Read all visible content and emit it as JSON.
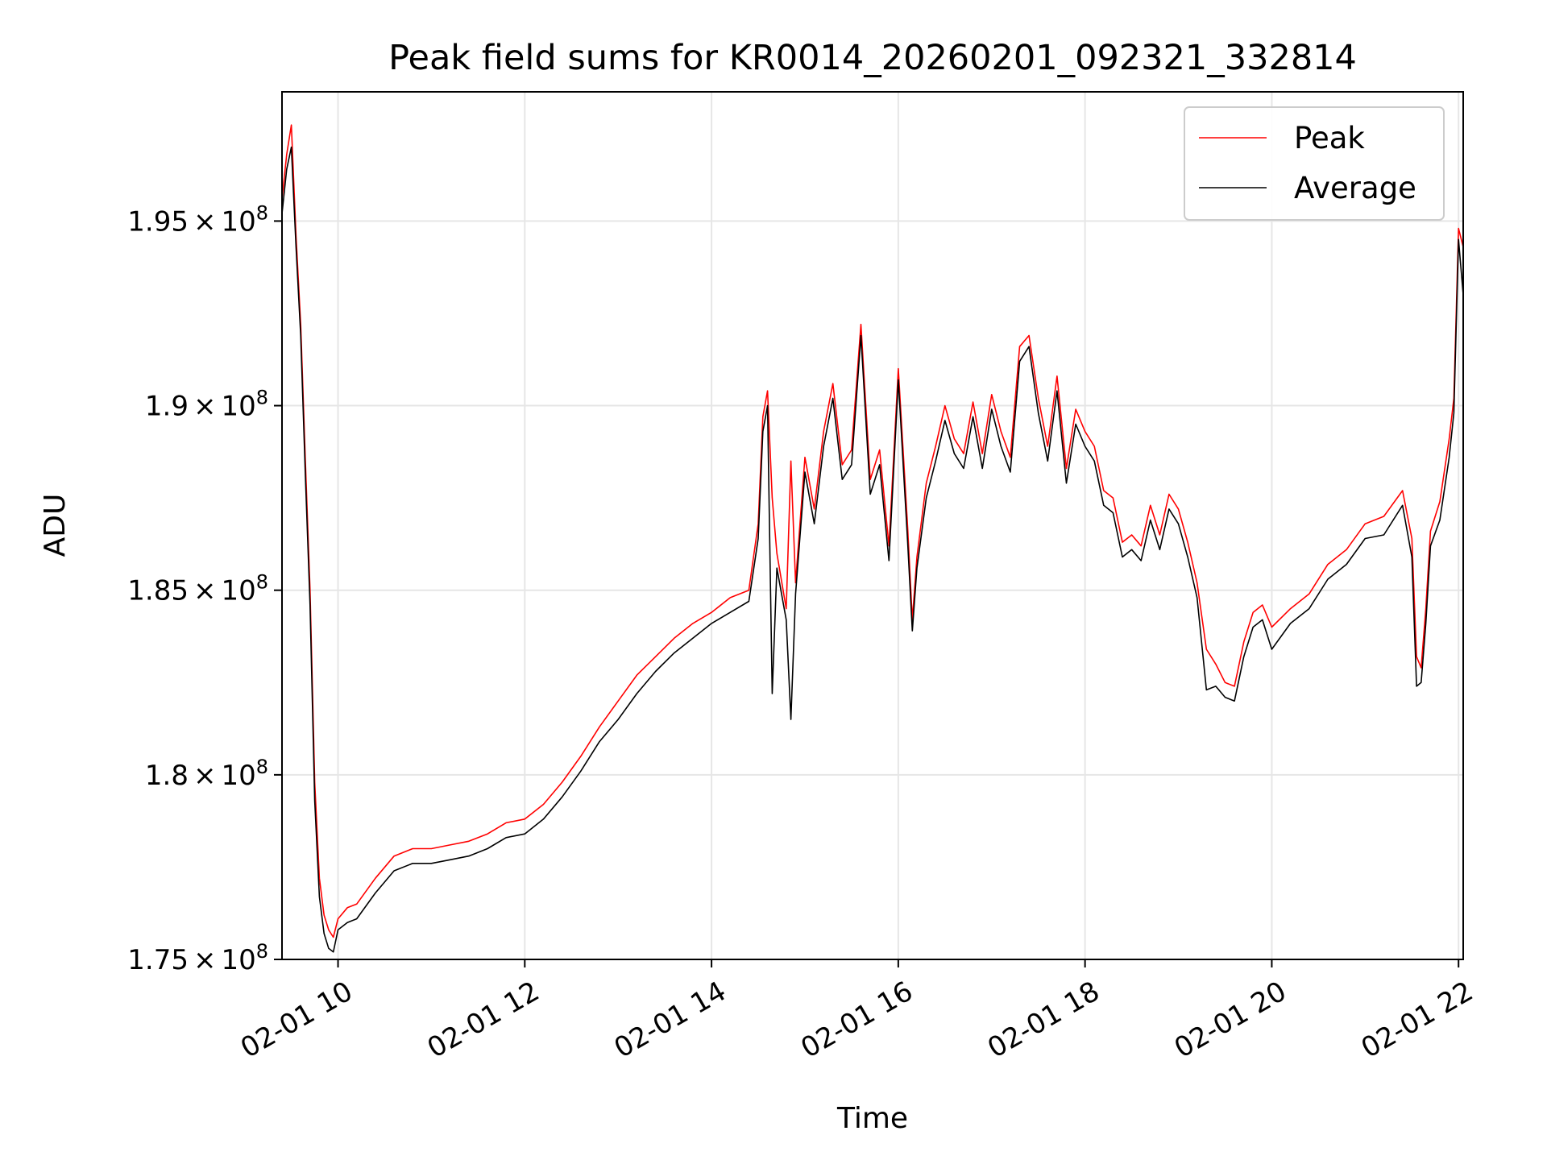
{
  "chart_data": {
    "type": "line",
    "title": "Peak field sums for KR0014_20260201_092321_332814",
    "xlabel": "Time",
    "ylabel": "ADU",
    "x_range_hours": [
      9.4,
      22.05
    ],
    "ylim": [
      175000000,
      198500000
    ],
    "x_ticks": [
      {
        "hour": 10,
        "label": "02-01 10"
      },
      {
        "hour": 12,
        "label": "02-01 12"
      },
      {
        "hour": 14,
        "label": "02-01 14"
      },
      {
        "hour": 16,
        "label": "02-01 16"
      },
      {
        "hour": 18,
        "label": "02-01 18"
      },
      {
        "hour": 20,
        "label": "02-01 20"
      },
      {
        "hour": 22,
        "label": "02-01 22"
      }
    ],
    "y_ticks": [
      {
        "value": 175000000,
        "mantissa": "1.75",
        "base": "10",
        "exp": "8"
      },
      {
        "value": 180000000,
        "mantissa": "1.8",
        "base": "10",
        "exp": "8"
      },
      {
        "value": 185000000,
        "mantissa": "1.85",
        "base": "10",
        "exp": "8"
      },
      {
        "value": 190000000,
        "mantissa": "1.9",
        "base": "10",
        "exp": "8"
      },
      {
        "value": 195000000,
        "mantissa": "1.95",
        "base": "10",
        "exp": "8"
      }
    ],
    "grid": true,
    "legend_position": "top-right",
    "series": [
      {
        "name": "Peak",
        "color": "#ff0000",
        "x": [
          9.4,
          9.45,
          9.5,
          9.55,
          9.6,
          9.65,
          9.7,
          9.75,
          9.8,
          9.85,
          9.9,
          9.95,
          10.0,
          10.1,
          10.2,
          10.4,
          10.6,
          10.8,
          11.0,
          11.2,
          11.4,
          11.6,
          11.8,
          12.0,
          12.2,
          12.4,
          12.6,
          12.8,
          13.0,
          13.2,
          13.4,
          13.6,
          13.8,
          14.0,
          14.2,
          14.4,
          14.5,
          14.55,
          14.6,
          14.65,
          14.7,
          14.8,
          14.85,
          14.9,
          15.0,
          15.1,
          15.2,
          15.3,
          15.4,
          15.5,
          15.6,
          15.7,
          15.8,
          15.9,
          16.0,
          16.1,
          16.15,
          16.2,
          16.3,
          16.4,
          16.5,
          16.6,
          16.7,
          16.8,
          16.9,
          17.0,
          17.1,
          17.2,
          17.3,
          17.4,
          17.5,
          17.6,
          17.7,
          17.8,
          17.9,
          18.0,
          18.1,
          18.2,
          18.3,
          18.4,
          18.5,
          18.6,
          18.7,
          18.8,
          18.9,
          19.0,
          19.1,
          19.2,
          19.3,
          19.4,
          19.5,
          19.6,
          19.7,
          19.8,
          19.9,
          20.0,
          20.2,
          20.4,
          20.6,
          20.8,
          21.0,
          21.2,
          21.4,
          21.5,
          21.55,
          21.6,
          21.65,
          21.7,
          21.8,
          21.9,
          21.95,
          22.0,
          22.05
        ],
        "y": [
          195600000,
          196800000,
          197600000,
          194600000,
          192200000,
          188500000,
          185000000,
          179800000,
          177200000,
          176200000,
          175800000,
          175600000,
          176100000,
          176400000,
          176500000,
          177200000,
          177800000,
          178000000,
          178000000,
          178100000,
          178200000,
          178400000,
          178700000,
          178800000,
          179200000,
          179800000,
          180500000,
          181300000,
          182000000,
          182700000,
          183200000,
          183700000,
          184100000,
          184400000,
          184800000,
          185000000,
          186800000,
          189700000,
          190400000,
          187500000,
          186000000,
          184500000,
          188500000,
          185200000,
          188600000,
          187200000,
          189300000,
          190600000,
          188400000,
          188800000,
          192200000,
          188000000,
          188800000,
          186200000,
          191000000,
          186700000,
          184200000,
          185900000,
          187900000,
          188900000,
          190000000,
          189100000,
          188700000,
          190100000,
          188700000,
          190300000,
          189300000,
          188600000,
          191600000,
          191900000,
          190200000,
          188900000,
          190800000,
          188300000,
          189900000,
          189300000,
          188900000,
          187700000,
          187500000,
          186300000,
          186500000,
          186200000,
          187300000,
          186500000,
          187600000,
          187200000,
          186300000,
          185200000,
          183400000,
          183000000,
          182500000,
          182400000,
          183600000,
          184400000,
          184600000,
          184000000,
          184500000,
          184900000,
          185700000,
          186100000,
          186800000,
          187000000,
          187700000,
          186400000,
          183200000,
          182900000,
          184500000,
          186600000,
          187400000,
          189100000,
          190200000,
          194800000,
          194300000
        ]
      },
      {
        "name": "Average",
        "color": "#000000",
        "x": [
          9.4,
          9.45,
          9.5,
          9.55,
          9.6,
          9.65,
          9.7,
          9.75,
          9.8,
          9.85,
          9.9,
          9.95,
          10.0,
          10.1,
          10.2,
          10.4,
          10.6,
          10.8,
          11.0,
          11.2,
          11.4,
          11.6,
          11.8,
          12.0,
          12.2,
          12.4,
          12.6,
          12.8,
          13.0,
          13.2,
          13.4,
          13.6,
          13.8,
          14.0,
          14.2,
          14.4,
          14.5,
          14.55,
          14.6,
          14.65,
          14.7,
          14.8,
          14.85,
          14.9,
          15.0,
          15.1,
          15.2,
          15.3,
          15.4,
          15.5,
          15.6,
          15.7,
          15.8,
          15.9,
          16.0,
          16.1,
          16.15,
          16.2,
          16.3,
          16.4,
          16.5,
          16.6,
          16.7,
          16.8,
          16.9,
          17.0,
          17.1,
          17.2,
          17.3,
          17.4,
          17.5,
          17.6,
          17.7,
          17.8,
          17.9,
          18.0,
          18.1,
          18.2,
          18.3,
          18.4,
          18.5,
          18.6,
          18.7,
          18.8,
          18.9,
          19.0,
          19.1,
          19.2,
          19.3,
          19.4,
          19.5,
          19.6,
          19.7,
          19.8,
          19.9,
          20.0,
          20.2,
          20.4,
          20.6,
          20.8,
          21.0,
          21.2,
          21.4,
          21.5,
          21.55,
          21.6,
          21.65,
          21.7,
          21.8,
          21.9,
          21.95,
          22.0,
          22.05
        ],
        "y": [
          195200000,
          196400000,
          197000000,
          194300000,
          191900000,
          188100000,
          184600000,
          179300000,
          176700000,
          175700000,
          175300000,
          175200000,
          175800000,
          176000000,
          176100000,
          176800000,
          177400000,
          177600000,
          177600000,
          177700000,
          177800000,
          178000000,
          178300000,
          178400000,
          178800000,
          179400000,
          180100000,
          180900000,
          181500000,
          182200000,
          182800000,
          183300000,
          183700000,
          184100000,
          184400000,
          184700000,
          186400000,
          189300000,
          190000000,
          182200000,
          185600000,
          184200000,
          181500000,
          184900000,
          188200000,
          186800000,
          188900000,
          190200000,
          188000000,
          188400000,
          191900000,
          187600000,
          188400000,
          185800000,
          190700000,
          186300000,
          183900000,
          185600000,
          187500000,
          188500000,
          189600000,
          188700000,
          188300000,
          189700000,
          188300000,
          189900000,
          188900000,
          188200000,
          191200000,
          191600000,
          189800000,
          188500000,
          190400000,
          187900000,
          189500000,
          188900000,
          188500000,
          187300000,
          187100000,
          185900000,
          186100000,
          185800000,
          186900000,
          186100000,
          187200000,
          186800000,
          185900000,
          184800000,
          182300000,
          182400000,
          182100000,
          182000000,
          183200000,
          184000000,
          184200000,
          183400000,
          184100000,
          184500000,
          185300000,
          185700000,
          186400000,
          186500000,
          187300000,
          185900000,
          182400000,
          182500000,
          184100000,
          186200000,
          186900000,
          188600000,
          189800000,
          194500000,
          193000000
        ]
      }
    ]
  }
}
